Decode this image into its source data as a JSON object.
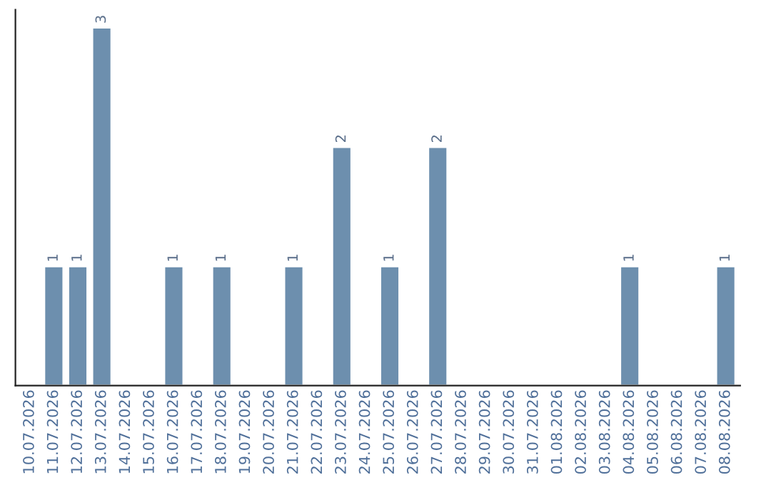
{
  "chart_data": {
    "type": "bar",
    "categories": [
      "10.07.2026",
      "11.07.2026",
      "12.07.2026",
      "13.07.2026",
      "14.07.2026",
      "15.07.2026",
      "16.07.2026",
      "17.07.2026",
      "18.07.2026",
      "19.07.2026",
      "20.07.2026",
      "21.07.2026",
      "22.07.2026",
      "23.07.2026",
      "24.07.2026",
      "25.07.2026",
      "26.07.2026",
      "27.07.2026",
      "28.07.2026",
      "29.07.2026",
      "30.07.2026",
      "31.07.2026",
      "01.08.2026",
      "02.08.2026",
      "03.08.2026",
      "04.08.2026",
      "05.08.2026",
      "06.08.2026",
      "07.08.2026",
      "08.08.2026"
    ],
    "values": [
      null,
      1,
      1,
      3,
      null,
      null,
      1,
      null,
      1,
      null,
      null,
      1,
      null,
      2,
      null,
      1,
      null,
      2,
      null,
      null,
      null,
      null,
      null,
      null,
      null,
      1,
      null,
      null,
      null,
      1
    ],
    "data_labels": true,
    "color": "#6d8fae",
    "ylim": [
      0,
      3.15
    ],
    "tick_labels": "x",
    "grid": false,
    "legend": false
  }
}
